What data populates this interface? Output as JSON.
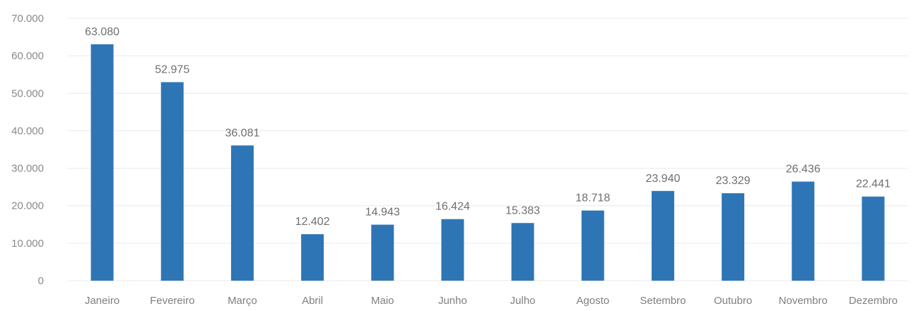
{
  "chart_data": {
    "type": "bar",
    "categories": [
      "Janeiro",
      "Fevereiro",
      "Março",
      "Abril",
      "Maio",
      "Junho",
      "Julho",
      "Agosto",
      "Setembro",
      "Outubro",
      "Novembro",
      "Dezembro"
    ],
    "values": [
      63080,
      52975,
      36081,
      12402,
      14943,
      16424,
      15383,
      18718,
      23940,
      23329,
      26436,
      22441
    ],
    "value_labels": [
      "63.080",
      "52.975",
      "36.081",
      "12.402",
      "14.943",
      "16.424",
      "15.383",
      "18.718",
      "23.940",
      "23.329",
      "26.436",
      "22.441"
    ],
    "yticks": [
      0,
      10000,
      20000,
      30000,
      40000,
      50000,
      60000,
      70000
    ],
    "ytick_labels": [
      "0",
      "10.000",
      "20.000",
      "30.000",
      "40.000",
      "50.000",
      "60.000",
      "70.000"
    ],
    "ylim": [
      0,
      70000
    ],
    "title": "",
    "xlabel": "",
    "ylabel": "",
    "grid": true,
    "legend": false,
    "bar_color": "#2e75b6"
  }
}
